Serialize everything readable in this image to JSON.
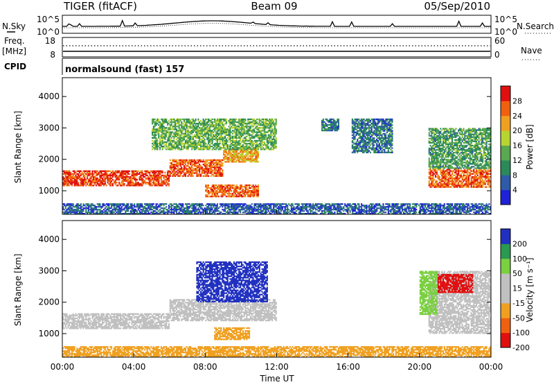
{
  "header": {
    "radar": "TIGER (fitACF)",
    "beam": "Beam 09",
    "date": "05/Sep/2010"
  },
  "top_panels": {
    "nsky": {
      "label": "N.Sky",
      "right_label": "N.Search",
      "left_ticks": [
        "10^5",
        "10^0"
      ],
      "right_ticks": [
        "10^5",
        "10^0"
      ]
    },
    "freq": {
      "label_line1": "Freq.",
      "label_line2": "[MHz]",
      "left_ticks": [
        "18",
        "8"
      ],
      "right_label": "Nave",
      "right_ticks": [
        "60",
        "0"
      ]
    },
    "cpid": {
      "label": "CPID",
      "text": "normalsound (fast) 157"
    }
  },
  "chart_data": [
    {
      "type": "heatmap",
      "title": "",
      "quantity": "Power",
      "xlabel": "",
      "ylabel": "Slant Range [km]",
      "xlim_hours": [
        0,
        24
      ],
      "ylim_km": [
        250,
        4600
      ],
      "yticks": [
        1000,
        2000,
        3000,
        4000
      ],
      "colorbar": {
        "label": "Power [dB]",
        "ticks": [
          4,
          8,
          12,
          16,
          20,
          24,
          28
        ],
        "colors": [
          "#1e22d8",
          "#2e5aa8",
          "#2a8a5a",
          "#5aa850",
          "#b8d430",
          "#f0a020",
          "#f06010",
          "#e01010"
        ]
      },
      "echo_regions": [
        {
          "t": [
            0.0,
            6.0
          ],
          "range_km": [
            1150,
            1650
          ],
          "power_db": 28
        },
        {
          "t": [
            6.0,
            9.0
          ],
          "range_km": [
            1450,
            2000
          ],
          "power_db": 26
        },
        {
          "t": [
            9.0,
            11.0
          ],
          "range_km": [
            1900,
            2350
          ],
          "power_db": 22
        },
        {
          "t": [
            8.0,
            11.0
          ],
          "range_km": [
            800,
            1200
          ],
          "power_db": 26
        },
        {
          "t": [
            5.0,
            12.0
          ],
          "range_km": [
            2300,
            3300
          ],
          "power_db": 14
        },
        {
          "t": [
            14.5,
            15.5
          ],
          "range_km": [
            2900,
            3300
          ],
          "power_db": 8
        },
        {
          "t": [
            16.2,
            18.5
          ],
          "range_km": [
            2200,
            3300
          ],
          "power_db": 8
        },
        {
          "t": [
            20.5,
            24.0
          ],
          "range_km": [
            1100,
            1700
          ],
          "power_db": 26
        },
        {
          "t": [
            20.5,
            24.0
          ],
          "range_km": [
            1700,
            3000
          ],
          "power_db": 12
        },
        {
          "t": [
            0.0,
            24.0
          ],
          "range_km": [
            250,
            600
          ],
          "power_db": 6
        }
      ]
    },
    {
      "type": "heatmap",
      "title": "",
      "quantity": "Velocity",
      "xlabel": "Time UT",
      "ylabel": "Slant Range [km]",
      "xlim_hours": [
        0,
        24
      ],
      "ylim_km": [
        250,
        4600
      ],
      "yticks": [
        1000,
        2000,
        3000,
        4000
      ],
      "xticks": [
        "00:00",
        "04:00",
        "08:00",
        "12:00",
        "16:00",
        "20:00",
        "00:00"
      ],
      "colorbar": {
        "label": "Velocity [m s⁻¹]",
        "ticks": [
          200,
          100,
          50,
          15,
          -15,
          -50,
          -100,
          -200
        ],
        "colors": [
          "#2030c0",
          "#2a9a50",
          "#7ad040",
          "#c0c0c0",
          "#c0c0c0",
          "#f0a020",
          "#f06010",
          "#e01010"
        ]
      },
      "echo_regions": [
        {
          "t": [
            0.0,
            6.0
          ],
          "range_km": [
            1150,
            1650
          ],
          "velocity": 0
        },
        {
          "t": [
            6.0,
            12.0
          ],
          "range_km": [
            1400,
            2100
          ],
          "velocity": 0
        },
        {
          "t": [
            8.5,
            10.5
          ],
          "range_km": [
            800,
            1200
          ],
          "velocity": -40
        },
        {
          "t": [
            7.5,
            11.5
          ],
          "range_km": [
            2000,
            3300
          ],
          "velocity": 150
        },
        {
          "t": [
            20.5,
            24.0
          ],
          "range_km": [
            1000,
            3000
          ],
          "velocity": 0
        },
        {
          "t": [
            21.0,
            23.0
          ],
          "range_km": [
            2300,
            2900
          ],
          "velocity": -150
        },
        {
          "t": [
            20.0,
            21.0
          ],
          "range_km": [
            1600,
            3000
          ],
          "velocity": 40
        },
        {
          "t": [
            0.0,
            24.0
          ],
          "range_km": [
            250,
            600
          ],
          "velocity": -30
        }
      ]
    }
  ]
}
